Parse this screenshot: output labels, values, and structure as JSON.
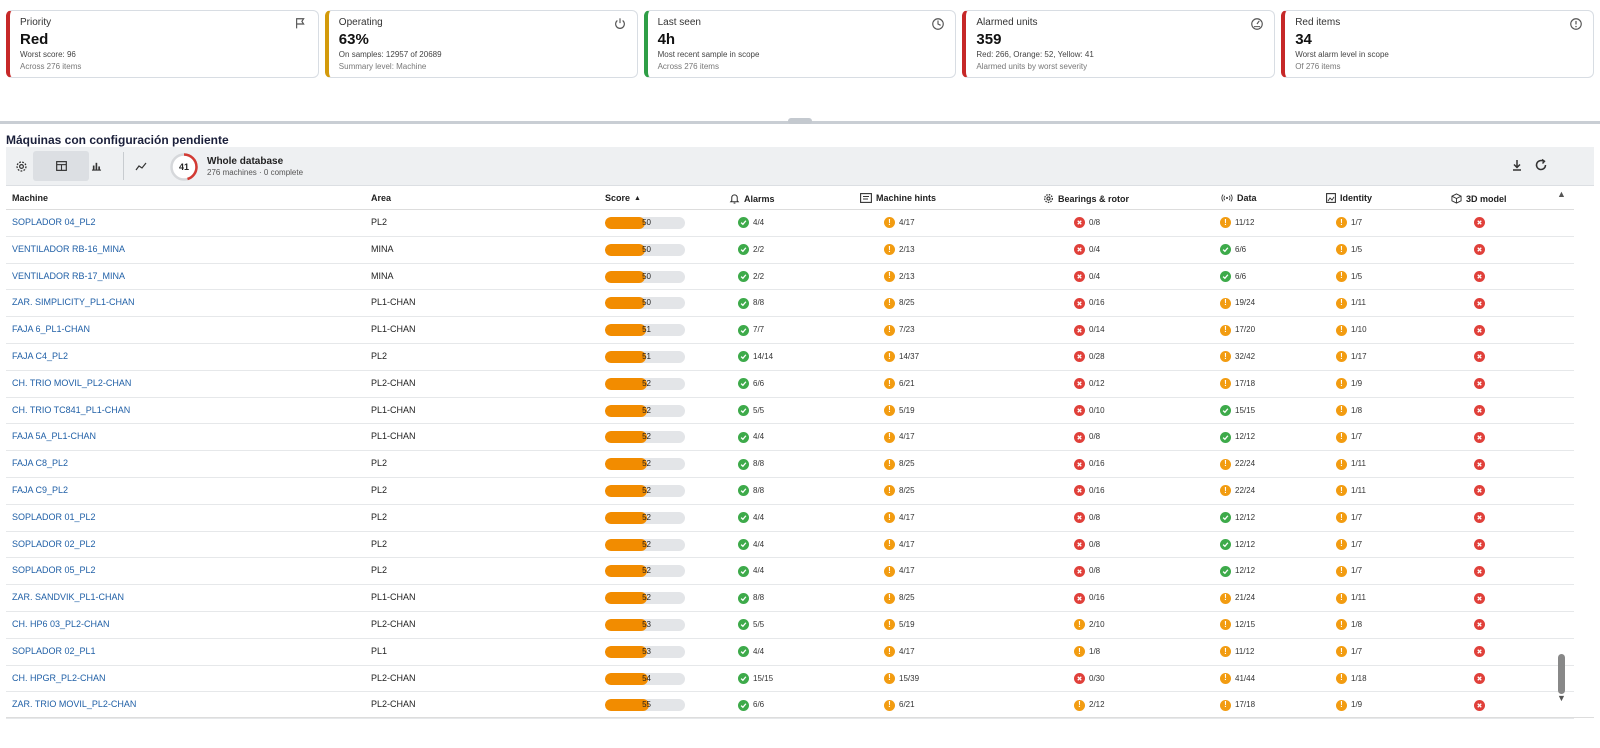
{
  "summary_cards": [
    {
      "title": "Priority",
      "value": "Red",
      "sub": "Worst score: 96",
      "foot": "Across 276 items",
      "color": "#c62828",
      "icon": "flag-icon"
    },
    {
      "title": "Operating",
      "value": "63%",
      "sub": "On samples: 12957 of 20689",
      "foot": "Summary level: Machine",
      "color": "#d39a0b",
      "icon": "power-icon"
    },
    {
      "title": "Last seen",
      "value": "4h",
      "sub": "Most recent sample in scope",
      "foot": "Across 276 items",
      "color": "#2e9e46",
      "icon": "clock-icon"
    },
    {
      "title": "Alarmed units",
      "value": "359",
      "sub": "Red: 266, Orange: 52, Yellow: 41",
      "foot": "Alarmed units by worst severity",
      "color": "#c62828",
      "icon": "gauge-icon"
    },
    {
      "title": "Red items",
      "value": "34",
      "sub": "Worst alarm level in scope",
      "foot": "Of 276 items",
      "color": "#c62828",
      "icon": "alert-circle-icon"
    }
  ],
  "panel": {
    "title": "Máquinas con configuración pendiente",
    "scope_score": 41,
    "scope_title": "Whole database",
    "scope_sub": "276 machines · 0 complete"
  },
  "columns": {
    "machine": "Machine",
    "area": "Area",
    "score": "Score",
    "alarms": "Alarms",
    "hints": "Machine hints",
    "bearings": "Bearings & rotor",
    "data": "Data",
    "identity": "Identity",
    "model": "3D model"
  },
  "colors": {
    "ok": "#3daa4a",
    "warn": "#f29c11",
    "err": "#e0403a",
    "bar": "#f28c00"
  },
  "rows": [
    {
      "machine": "SOPLADOR 04_PL2",
      "area": "PL2",
      "score": 50,
      "alarms": {
        "s": "ok",
        "v": "4/4"
      },
      "hints": {
        "s": "warn",
        "v": "4/17"
      },
      "bearings": {
        "s": "err",
        "v": "0/8"
      },
      "data": {
        "s": "warn",
        "v": "11/12"
      },
      "identity": {
        "s": "warn",
        "v": "1/7"
      },
      "model": {
        "s": "err",
        "v": ""
      }
    },
    {
      "machine": "VENTILADOR RB-16_MINA",
      "area": "MINA",
      "score": 50,
      "alarms": {
        "s": "ok",
        "v": "2/2"
      },
      "hints": {
        "s": "warn",
        "v": "2/13"
      },
      "bearings": {
        "s": "err",
        "v": "0/4"
      },
      "data": {
        "s": "ok",
        "v": "6/6"
      },
      "identity": {
        "s": "warn",
        "v": "1/5"
      },
      "model": {
        "s": "err",
        "v": ""
      }
    },
    {
      "machine": "VENTILADOR RB-17_MINA",
      "area": "MINA",
      "score": 50,
      "alarms": {
        "s": "ok",
        "v": "2/2"
      },
      "hints": {
        "s": "warn",
        "v": "2/13"
      },
      "bearings": {
        "s": "err",
        "v": "0/4"
      },
      "data": {
        "s": "ok",
        "v": "6/6"
      },
      "identity": {
        "s": "warn",
        "v": "1/5"
      },
      "model": {
        "s": "err",
        "v": ""
      }
    },
    {
      "machine": "ZAR. SIMPLICITY_PL1-CHAN",
      "area": "PL1-CHAN",
      "score": 50,
      "alarms": {
        "s": "ok",
        "v": "8/8"
      },
      "hints": {
        "s": "warn",
        "v": "8/25"
      },
      "bearings": {
        "s": "err",
        "v": "0/16"
      },
      "data": {
        "s": "warn",
        "v": "19/24"
      },
      "identity": {
        "s": "warn",
        "v": "1/11"
      },
      "model": {
        "s": "err",
        "v": ""
      }
    },
    {
      "machine": "FAJA 6_PL1-CHAN",
      "area": "PL1-CHAN",
      "score": 51,
      "alarms": {
        "s": "ok",
        "v": "7/7"
      },
      "hints": {
        "s": "warn",
        "v": "7/23"
      },
      "bearings": {
        "s": "err",
        "v": "0/14"
      },
      "data": {
        "s": "warn",
        "v": "17/20"
      },
      "identity": {
        "s": "warn",
        "v": "1/10"
      },
      "model": {
        "s": "err",
        "v": ""
      }
    },
    {
      "machine": "FAJA C4_PL2",
      "area": "PL2",
      "score": 51,
      "alarms": {
        "s": "ok",
        "v": "14/14"
      },
      "hints": {
        "s": "warn",
        "v": "14/37"
      },
      "bearings": {
        "s": "err",
        "v": "0/28"
      },
      "data": {
        "s": "warn",
        "v": "32/42"
      },
      "identity": {
        "s": "warn",
        "v": "1/17"
      },
      "model": {
        "s": "err",
        "v": ""
      }
    },
    {
      "machine": "CH. TRIO MOVIL_PL2-CHAN",
      "area": "PL2-CHAN",
      "score": 52,
      "alarms": {
        "s": "ok",
        "v": "6/6"
      },
      "hints": {
        "s": "warn",
        "v": "6/21"
      },
      "bearings": {
        "s": "err",
        "v": "0/12"
      },
      "data": {
        "s": "warn",
        "v": "17/18"
      },
      "identity": {
        "s": "warn",
        "v": "1/9"
      },
      "model": {
        "s": "err",
        "v": ""
      }
    },
    {
      "machine": "CH. TRIO TC841_PL1-CHAN",
      "area": "PL1-CHAN",
      "score": 52,
      "alarms": {
        "s": "ok",
        "v": "5/5"
      },
      "hints": {
        "s": "warn",
        "v": "5/19"
      },
      "bearings": {
        "s": "err",
        "v": "0/10"
      },
      "data": {
        "s": "ok",
        "v": "15/15"
      },
      "identity": {
        "s": "warn",
        "v": "1/8"
      },
      "model": {
        "s": "err",
        "v": ""
      }
    },
    {
      "machine": "FAJA 5A_PL1-CHAN",
      "area": "PL1-CHAN",
      "score": 52,
      "alarms": {
        "s": "ok",
        "v": "4/4"
      },
      "hints": {
        "s": "warn",
        "v": "4/17"
      },
      "bearings": {
        "s": "err",
        "v": "0/8"
      },
      "data": {
        "s": "ok",
        "v": "12/12"
      },
      "identity": {
        "s": "warn",
        "v": "1/7"
      },
      "model": {
        "s": "err",
        "v": ""
      }
    },
    {
      "machine": "FAJA C8_PL2",
      "area": "PL2",
      "score": 52,
      "alarms": {
        "s": "ok",
        "v": "8/8"
      },
      "hints": {
        "s": "warn",
        "v": "8/25"
      },
      "bearings": {
        "s": "err",
        "v": "0/16"
      },
      "data": {
        "s": "warn",
        "v": "22/24"
      },
      "identity": {
        "s": "warn",
        "v": "1/11"
      },
      "model": {
        "s": "err",
        "v": ""
      }
    },
    {
      "machine": "FAJA C9_PL2",
      "area": "PL2",
      "score": 52,
      "alarms": {
        "s": "ok",
        "v": "8/8"
      },
      "hints": {
        "s": "warn",
        "v": "8/25"
      },
      "bearings": {
        "s": "err",
        "v": "0/16"
      },
      "data": {
        "s": "warn",
        "v": "22/24"
      },
      "identity": {
        "s": "warn",
        "v": "1/11"
      },
      "model": {
        "s": "err",
        "v": ""
      }
    },
    {
      "machine": "SOPLADOR 01_PL2",
      "area": "PL2",
      "score": 52,
      "alarms": {
        "s": "ok",
        "v": "4/4"
      },
      "hints": {
        "s": "warn",
        "v": "4/17"
      },
      "bearings": {
        "s": "err",
        "v": "0/8"
      },
      "data": {
        "s": "ok",
        "v": "12/12"
      },
      "identity": {
        "s": "warn",
        "v": "1/7"
      },
      "model": {
        "s": "err",
        "v": ""
      }
    },
    {
      "machine": "SOPLADOR 02_PL2",
      "area": "PL2",
      "score": 52,
      "alarms": {
        "s": "ok",
        "v": "4/4"
      },
      "hints": {
        "s": "warn",
        "v": "4/17"
      },
      "bearings": {
        "s": "err",
        "v": "0/8"
      },
      "data": {
        "s": "ok",
        "v": "12/12"
      },
      "identity": {
        "s": "warn",
        "v": "1/7"
      },
      "model": {
        "s": "err",
        "v": ""
      }
    },
    {
      "machine": "SOPLADOR 05_PL2",
      "area": "PL2",
      "score": 52,
      "alarms": {
        "s": "ok",
        "v": "4/4"
      },
      "hints": {
        "s": "warn",
        "v": "4/17"
      },
      "bearings": {
        "s": "err",
        "v": "0/8"
      },
      "data": {
        "s": "ok",
        "v": "12/12"
      },
      "identity": {
        "s": "warn",
        "v": "1/7"
      },
      "model": {
        "s": "err",
        "v": ""
      }
    },
    {
      "machine": "ZAR. SANDVIK_PL1-CHAN",
      "area": "PL1-CHAN",
      "score": 52,
      "alarms": {
        "s": "ok",
        "v": "8/8"
      },
      "hints": {
        "s": "warn",
        "v": "8/25"
      },
      "bearings": {
        "s": "err",
        "v": "0/16"
      },
      "data": {
        "s": "warn",
        "v": "21/24"
      },
      "identity": {
        "s": "warn",
        "v": "1/11"
      },
      "model": {
        "s": "err",
        "v": ""
      }
    },
    {
      "machine": "CH. HP6 03_PL2-CHAN",
      "area": "PL2-CHAN",
      "score": 53,
      "alarms": {
        "s": "ok",
        "v": "5/5"
      },
      "hints": {
        "s": "warn",
        "v": "5/19"
      },
      "bearings": {
        "s": "warn",
        "v": "2/10"
      },
      "data": {
        "s": "warn",
        "v": "12/15"
      },
      "identity": {
        "s": "warn",
        "v": "1/8"
      },
      "model": {
        "s": "err",
        "v": ""
      }
    },
    {
      "machine": "SOPLADOR 02_PL1",
      "area": "PL1",
      "score": 53,
      "alarms": {
        "s": "ok",
        "v": "4/4"
      },
      "hints": {
        "s": "warn",
        "v": "4/17"
      },
      "bearings": {
        "s": "warn",
        "v": "1/8"
      },
      "data": {
        "s": "warn",
        "v": "11/12"
      },
      "identity": {
        "s": "warn",
        "v": "1/7"
      },
      "model": {
        "s": "err",
        "v": ""
      }
    },
    {
      "machine": "CH. HPGR_PL2-CHAN",
      "area": "PL2-CHAN",
      "score": 54,
      "alarms": {
        "s": "ok",
        "v": "15/15"
      },
      "hints": {
        "s": "warn",
        "v": "15/39"
      },
      "bearings": {
        "s": "err",
        "v": "0/30"
      },
      "data": {
        "s": "warn",
        "v": "41/44"
      },
      "identity": {
        "s": "warn",
        "v": "1/18"
      },
      "model": {
        "s": "err",
        "v": ""
      }
    },
    {
      "machine": "ZAR. TRIO MOVIL_PL2-CHAN",
      "area": "PL2-CHAN",
      "score": 55,
      "alarms": {
        "s": "ok",
        "v": "6/6"
      },
      "hints": {
        "s": "warn",
        "v": "6/21"
      },
      "bearings": {
        "s": "warn",
        "v": "2/12"
      },
      "data": {
        "s": "warn",
        "v": "17/18"
      },
      "identity": {
        "s": "warn",
        "v": "1/9"
      },
      "model": {
        "s": "err",
        "v": ""
      }
    }
  ]
}
